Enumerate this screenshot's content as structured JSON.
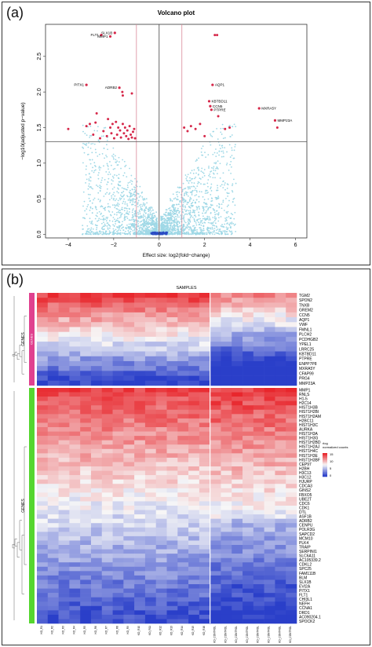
{
  "panel_a": {
    "label": "(a)",
    "chart_data": {
      "type": "scatter",
      "title": "Volcano plot",
      "xlabel": "Effect size: log2(fold−change)",
      "ylabel": "−log10(adjusted p−value)",
      "xlim": [
        -5,
        6.5
      ],
      "ylim": [
        -0.05,
        2.95
      ],
      "xticks": [
        "−4",
        "−2",
        "0",
        "2",
        "4",
        "6"
      ],
      "xtick_values": [
        -4,
        -2,
        0,
        2,
        4,
        6
      ],
      "yticks": [
        "0.0",
        "0.5",
        "1.0",
        "1.5",
        "2.0",
        "2.5"
      ],
      "ytick_values": [
        0,
        0.5,
        1,
        1.5,
        2,
        2.5
      ],
      "fc_threshold": [
        -1,
        1
      ],
      "p_threshold": 1.3,
      "colors": {
        "significant": "#d6284a",
        "background": "#9fd8e6",
        "center": "#2b4cc4",
        "threshold_v": "#d98a9a",
        "threshold_h": "#555555"
      },
      "labeled_points": [
        {
          "name": "FLT1",
          "x": -2.55,
          "y": 2.8
        },
        {
          "name": "SLX1B",
          "x": -1.95,
          "y": 2.83
        },
        {
          "name": "MMP1",
          "x": -2.15,
          "y": 2.78
        },
        {
          "name": "PITX1",
          "x": -3.2,
          "y": 2.1
        },
        {
          "name": "ADRB2",
          "x": -1.75,
          "y": 2.06
        },
        {
          "name": "AQP1",
          "x": 2.35,
          "y": 2.1
        },
        {
          "name": "KBTBD11",
          "x": 2.2,
          "y": 1.87
        },
        {
          "name": "CCN5",
          "x": 2.25,
          "y": 1.8
        },
        {
          "name": "PTPRE",
          "x": 2.3,
          "y": 1.75
        },
        {
          "name": "MXRA5Y",
          "x": 4.4,
          "y": 1.77
        },
        {
          "name": "MMP23A",
          "x": 5.1,
          "y": 1.6
        }
      ],
      "other_significant": [
        {
          "x": 2.45,
          "y": 2.8
        },
        {
          "x": 2.55,
          "y": 2.8
        },
        {
          "x": -4.0,
          "y": 1.48
        },
        {
          "x": -3.2,
          "y": 1.52
        },
        {
          "x": -3.05,
          "y": 1.55
        },
        {
          "x": -2.9,
          "y": 1.4
        },
        {
          "x": -2.75,
          "y": 1.7
        },
        {
          "x": -2.6,
          "y": 1.35
        },
        {
          "x": -2.45,
          "y": 1.45
        },
        {
          "x": -2.3,
          "y": 1.38
        },
        {
          "x": -2.25,
          "y": 1.62
        },
        {
          "x": -2.15,
          "y": 1.5
        },
        {
          "x": -2.1,
          "y": 1.42
        },
        {
          "x": -2.05,
          "y": 1.55
        },
        {
          "x": -1.98,
          "y": 1.35
        },
        {
          "x": -1.9,
          "y": 1.58
        },
        {
          "x": -1.85,
          "y": 1.4
        },
        {
          "x": -1.8,
          "y": 1.5
        },
        {
          "x": -1.72,
          "y": 1.46
        },
        {
          "x": -1.68,
          "y": 1.36
        },
        {
          "x": -1.6,
          "y": 1.55
        },
        {
          "x": -1.55,
          "y": 1.42
        },
        {
          "x": -1.5,
          "y": 1.5
        },
        {
          "x": -1.45,
          "y": 1.38
        },
        {
          "x": -1.4,
          "y": 1.46
        },
        {
          "x": -1.35,
          "y": 1.34
        },
        {
          "x": -1.3,
          "y": 1.52
        },
        {
          "x": -1.25,
          "y": 1.4
        },
        {
          "x": -1.2,
          "y": 1.36
        },
        {
          "x": -1.15,
          "y": 1.44
        },
        {
          "x": -1.1,
          "y": 1.48
        },
        {
          "x": -1.06,
          "y": 1.35
        },
        {
          "x": -1.62,
          "y": 2.0
        },
        {
          "x": -1.6,
          "y": 1.95
        },
        {
          "x": -1.2,
          "y": 1.98
        },
        {
          "x": -2.8,
          "y": 1.57
        },
        {
          "x": 1.1,
          "y": 1.5
        },
        {
          "x": 1.25,
          "y": 1.45
        },
        {
          "x": 1.4,
          "y": 1.52
        },
        {
          "x": 1.6,
          "y": 1.48
        },
        {
          "x": 1.8,
          "y": 1.55
        },
        {
          "x": 2.0,
          "y": 1.38
        },
        {
          "x": 2.6,
          "y": 1.66
        },
        {
          "x": 2.9,
          "y": 1.48
        },
        {
          "x": 3.1,
          "y": 1.5
        },
        {
          "x": 5.2,
          "y": 1.5
        }
      ]
    }
  },
  "panel_b": {
    "label": "(b)",
    "chart_data": {
      "type": "heatmap",
      "title": "SAMPLES",
      "ylabel": "GENES",
      "legend_title": "rlog\nnormalized counts",
      "legend_ticks": [
        "15",
        "10",
        "5",
        "0"
      ],
      "colors": {
        "high": "#e8262c",
        "mid": "#f7f7f7",
        "low": "#2a3fc9",
        "top_cluster_bar": "#e0418f",
        "bottom_cluster_bar": "#55d62f"
      },
      "columns": [
        "KO_R1",
        "KO_R2",
        "KO_R3",
        "KO_R4",
        "KO_R5",
        "KO_R6",
        "KO_R7",
        "KO_R8",
        "KO_R9",
        "KO_R10",
        "KO_R11",
        "KO_R12",
        "KO_R13",
        "KO_R14",
        "KO_R15",
        "KO_R16",
        "KO_CONTROL",
        "KO_CONTROL",
        "KO_CONTROL",
        "KO_CONTROL",
        "KO_CONTROL",
        "KO_CONTROL",
        "KO_CONTROL",
        "KO_CONTROL"
      ],
      "group_split_after_column": 16,
      "top_cluster_label": "GENES",
      "top_genes": [
        "TGM2",
        "SPON2",
        "TNXB",
        "GREM2",
        "CCN5",
        "AQP1",
        "VWF",
        "FMNL1",
        "PLCH2",
        "PCDHGB2",
        "YPEL1",
        "LRRC25",
        "KBTBD11",
        "PTPRE",
        "ENPP7P8",
        "MXRA5Y",
        "CFAP99",
        "PRG4",
        "MMP23A"
      ],
      "bottom_genes": [
        "MMP1",
        "RNLS",
        "H1-5",
        "H2C14",
        "HIST1H3B",
        "HIST1H2BI",
        "HIST1H2AM",
        "H2BC11",
        "HIST1H3C",
        "AURKA",
        "HIST1H3A",
        "HIST1H3G",
        "HIST1H2BD",
        "HIST1H2AJ",
        "HIST1H4C",
        "HIST1H3E",
        "HIST1H3BF",
        "CEP97",
        "H2BH",
        "H3C13",
        "H3C12",
        "HJURP",
        "CDCA3",
        "GINS2",
        "FBXO5",
        "UBE2T",
        "CDC6",
        "CDK1",
        "DTL",
        "ASF1B",
        "ADRB2",
        "CENPU",
        "POLR3G",
        "SAPCD2",
        "MCM10",
        "PLK4",
        "TRAIP",
        "SERPINI1",
        "SLC6A11",
        "AC105339.2",
        "CDKL2",
        "SPC25",
        "FAM111B",
        "BLM",
        "SLX1B",
        "EVI2A",
        "PITX1",
        "FLT1",
        "CHI3L1",
        "NEFH",
        "CCNA1",
        "DRD1",
        "AC090204.1",
        "SPOCK2"
      ]
    }
  }
}
